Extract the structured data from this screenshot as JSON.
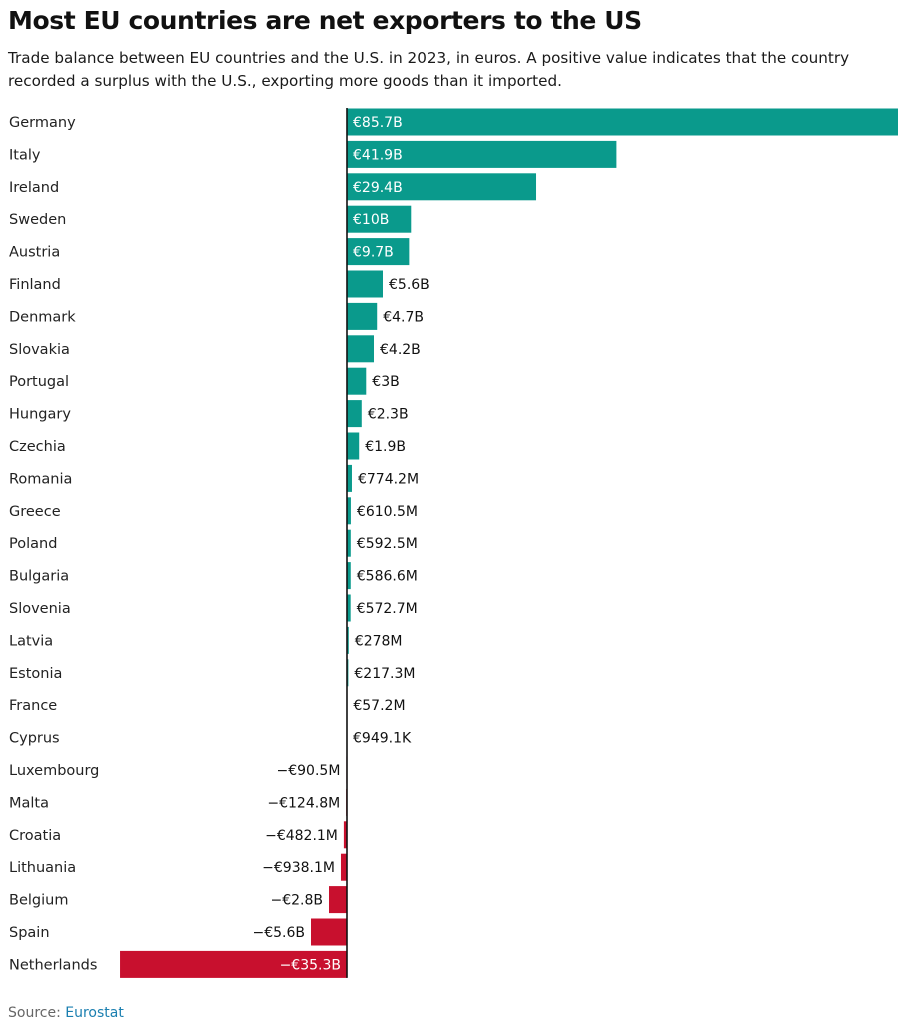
{
  "header": {
    "title": "Most EU countries are net exporters to the US",
    "subtitle": "Trade balance between EU countries and the U.S. in 2023, in euros. A positive value indicates that the country recorded a surplus with the U.S., exporting more goods than it imported."
  },
  "footer": {
    "source_prefix": "Source: ",
    "source_name": "Eurostat"
  },
  "colors": {
    "positive": "#0a9a8c",
    "negative": "#c8102e",
    "axis": "#111111"
  },
  "chart_data": {
    "type": "bar",
    "orientation": "horizontal",
    "unit": "euros",
    "categories": [
      "Germany",
      "Italy",
      "Ireland",
      "Sweden",
      "Austria",
      "Finland",
      "Denmark",
      "Slovakia",
      "Portugal",
      "Hungary",
      "Czechia",
      "Romania",
      "Greece",
      "Poland",
      "Bulgaria",
      "Slovenia",
      "Latvia",
      "Estonia",
      "France",
      "Cyprus",
      "Luxembourg",
      "Malta",
      "Croatia",
      "Lithuania",
      "Belgium",
      "Spain",
      "Netherlands"
    ],
    "values": [
      85700000000,
      41900000000,
      29400000000,
      10000000000,
      9700000000,
      5600000000,
      4700000000,
      4200000000,
      3000000000,
      2300000000,
      1900000000,
      774200000,
      610500000,
      592500000,
      586600000,
      572700000,
      278000000,
      217300000,
      57200000,
      949100,
      -90500000,
      -124800000,
      -482100000,
      -938100000,
      -2800000000,
      -5600000000,
      -35300000000
    ],
    "labels": [
      "€85.7B",
      "€41.9B",
      "€29.4B",
      "€10B",
      "€9.7B",
      "€5.6B",
      "€4.7B",
      "€4.2B",
      "€3B",
      "€2.3B",
      "€1.9B",
      "€774.2M",
      "€610.5M",
      "€592.5M",
      "€586.6M",
      "€572.7M",
      "€278M",
      "€217.3M",
      "€57.2M",
      "€949.1K",
      "−€90.5M",
      "−€124.8M",
      "−€482.1M",
      "−€938.1M",
      "−€2.8B",
      "−€5.6B",
      "−€35.3B"
    ],
    "xlim": [
      -35300000000,
      85700000000
    ],
    "grid": false,
    "legend": "none"
  }
}
